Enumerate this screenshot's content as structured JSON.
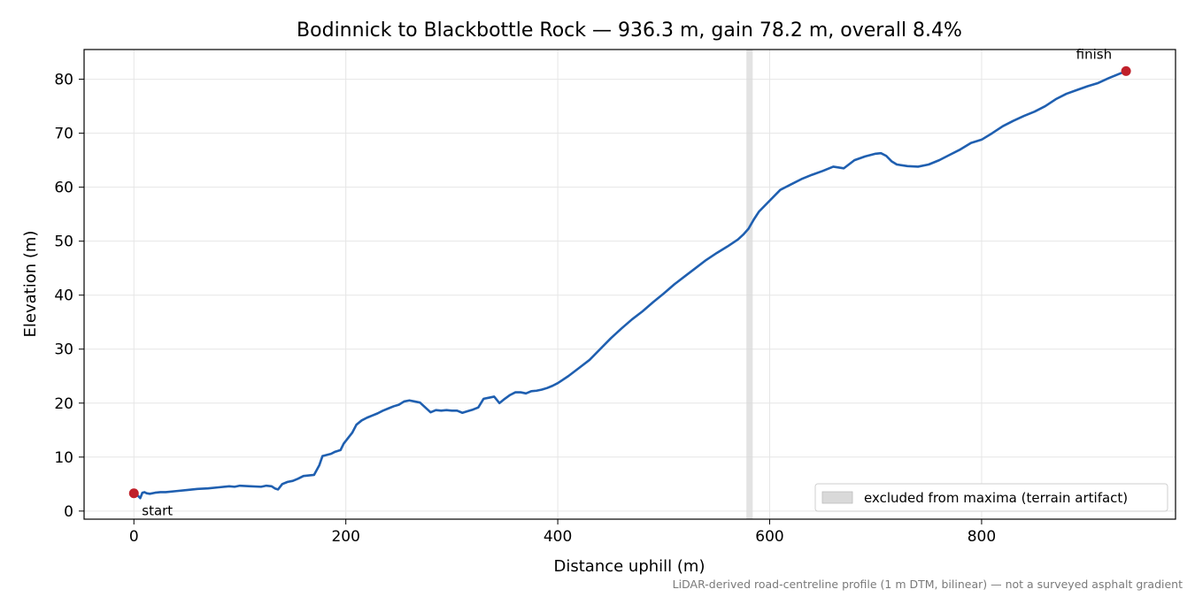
{
  "chart_data": {
    "type": "line",
    "title": "Bodinnick to Blackbottle Rock — 936.3 m, gain 78.2 m, overall 8.4%",
    "xlabel": "Distance uphill (m)",
    "ylabel": "Elevation (m)",
    "xlim": [
      -47,
      983
    ],
    "ylim": [
      -1.5,
      85.5
    ],
    "xticks": [
      0,
      200,
      400,
      600,
      800
    ],
    "yticks": [
      0,
      10,
      20,
      30,
      40,
      50,
      60,
      70,
      80
    ],
    "grid": true,
    "legend_position": "lower-right",
    "legend_label": "excluded from maxima (terrain artifact)",
    "excluded_band": {
      "x0": 578,
      "x1": 584
    },
    "footnote": "LiDAR-derived road-centreline profile (1 m DTM, bilinear) — not a surveyed asphalt gradient",
    "colors": {
      "line": "#1f5fb0",
      "marker": "#c0202a",
      "band": "#d9d9d9",
      "grid": "#e6e6e6"
    },
    "markers": [
      {
        "label": "start",
        "x": 0,
        "y": 3.3
      },
      {
        "label": "finish",
        "x": 936.3,
        "y": 81.5
      }
    ],
    "series": [
      {
        "x": [
          0,
          3,
          6,
          8,
          10,
          12,
          15,
          20,
          25,
          30,
          40,
          50,
          60,
          70,
          80,
          90,
          95,
          100,
          110,
          120,
          125,
          130,
          133,
          136,
          140,
          145,
          150,
          155,
          160,
          165,
          170,
          175,
          178,
          182,
          186,
          190,
          195,
          198,
          202,
          206,
          210,
          215,
          220,
          225,
          230,
          235,
          240,
          245,
          250,
          255,
          260,
          265,
          270,
          275,
          280,
          285,
          290,
          295,
          300,
          305,
          310,
          315,
          320,
          325,
          330,
          335,
          340,
          345,
          350,
          355,
          360,
          365,
          370,
          375,
          380,
          385,
          390,
          395,
          400,
          410,
          420,
          430,
          440,
          450,
          460,
          470,
          480,
          490,
          500,
          510,
          520,
          530,
          540,
          550,
          560,
          570,
          575,
          580,
          585,
          590,
          595,
          600,
          610,
          620,
          630,
          640,
          650,
          660,
          670,
          680,
          690,
          700,
          705,
          710,
          715,
          720,
          730,
          740,
          750,
          760,
          770,
          780,
          790,
          800,
          810,
          820,
          830,
          840,
          850,
          860,
          870,
          880,
          890,
          900,
          910,
          920,
          930,
          936.3
        ],
        "values": [
          3.3,
          3.0,
          2.4,
          3.4,
          3.5,
          3.3,
          3.2,
          3.4,
          3.5,
          3.5,
          3.7,
          3.9,
          4.1,
          4.2,
          4.4,
          4.6,
          4.5,
          4.7,
          4.6,
          4.5,
          4.7,
          4.6,
          4.2,
          4.0,
          5.0,
          5.4,
          5.6,
          6.0,
          6.5,
          6.6,
          6.7,
          8.5,
          10.2,
          10.4,
          10.6,
          11.0,
          11.3,
          12.5,
          13.5,
          14.5,
          16.0,
          16.8,
          17.3,
          17.7,
          18.1,
          18.6,
          19.0,
          19.4,
          19.7,
          20.3,
          20.5,
          20.3,
          20.1,
          19.2,
          18.3,
          18.7,
          18.6,
          18.7,
          18.6,
          18.6,
          18.2,
          18.5,
          18.8,
          19.2,
          20.8,
          21.0,
          21.2,
          20.0,
          20.8,
          21.5,
          22.0,
          22.0,
          21.8,
          22.2,
          22.3,
          22.5,
          22.8,
          23.2,
          23.7,
          25.0,
          26.5,
          28.0,
          30.0,
          32.0,
          33.8,
          35.5,
          37.0,
          38.7,
          40.3,
          42.0,
          43.5,
          45.0,
          46.5,
          47.8,
          49.0,
          50.3,
          51.2,
          52.3,
          54.0,
          55.5,
          56.5,
          57.5,
          59.5,
          60.5,
          61.5,
          62.3,
          63.0,
          63.8,
          63.5,
          65.0,
          65.7,
          66.2,
          66.3,
          65.8,
          64.8,
          64.2,
          63.9,
          63.8,
          64.2,
          65.0,
          66.0,
          67.0,
          68.2,
          68.8,
          70.0,
          71.3,
          72.3,
          73.2,
          74.0,
          75.0,
          76.3,
          77.3,
          78.0,
          78.7,
          79.3,
          80.2,
          81.0,
          81.5
        ]
      }
    ]
  }
}
